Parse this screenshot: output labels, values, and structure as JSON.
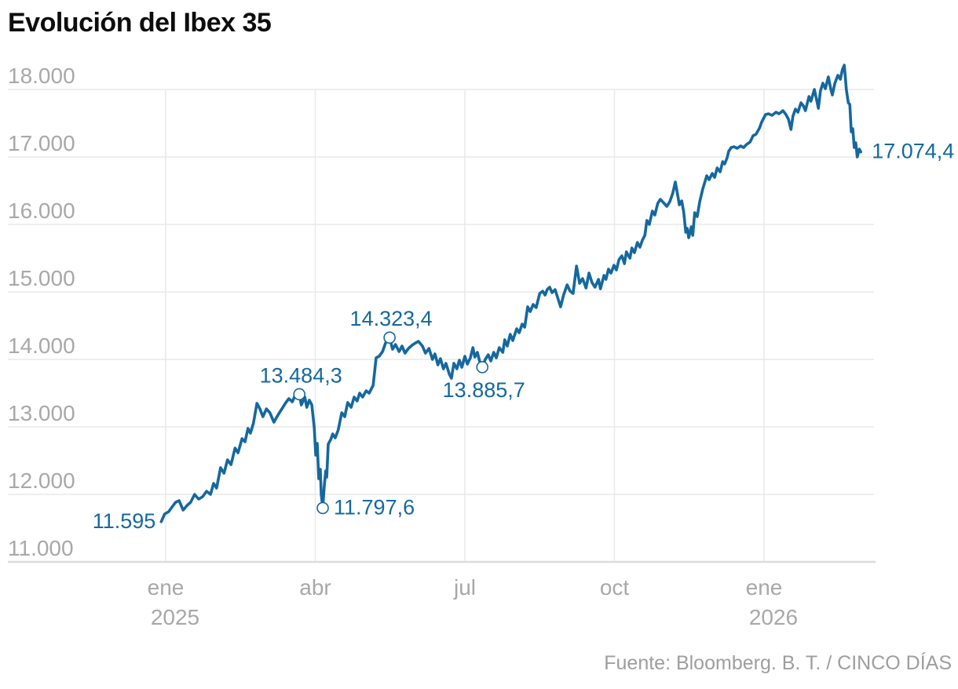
{
  "chart_data": {
    "type": "line",
    "title": "Evolución del Ibex 35",
    "source": "Fuente: Bloomberg. B. T. / CINCO DÍAS",
    "line_color": "#15689e",
    "annotation_color": "#15689e",
    "grid_color": "#e9e9e9",
    "axis_label_color": "#a8a8a8",
    "ylim": [
      11000,
      18000
    ],
    "y_axis": {
      "ticks": [
        {
          "value": 18000,
          "label": "18.000"
        },
        {
          "value": 17000,
          "label": "17.000"
        },
        {
          "value": 16000,
          "label": "16.000"
        },
        {
          "value": 15000,
          "label": "15.000"
        },
        {
          "value": 14000,
          "label": "14.000"
        },
        {
          "value": 13000,
          "label": "13.000"
        },
        {
          "value": 12000,
          "label": "12.000"
        },
        {
          "value": 11000,
          "label": "11.000"
        }
      ]
    },
    "x_axis": {
      "unit": "months_since_jan_2025",
      "ticks": [
        {
          "m": 0,
          "label": "ene",
          "year": "2025"
        },
        {
          "m": 3,
          "label": "abr"
        },
        {
          "m": 6,
          "label": "jul"
        },
        {
          "m": 9,
          "label": "oct"
        },
        {
          "m": 12,
          "label": "ene",
          "year": "2026"
        }
      ]
    },
    "annotations": [
      {
        "label": "11.595",
        "value": 11595,
        "m": -0.09,
        "marker": false,
        "pos": "left"
      },
      {
        "label": "13.484,3",
        "value": 13484.3,
        "m": 2.68,
        "marker": true,
        "pos": "above"
      },
      {
        "label": "11.797,6",
        "value": 11797.6,
        "m": 3.15,
        "marker": true,
        "pos": "right"
      },
      {
        "label": "14.323,4",
        "value": 14323.4,
        "m": 4.49,
        "marker": true,
        "pos": "above"
      },
      {
        "label": "13.885,7",
        "value": 13885.7,
        "m": 6.35,
        "marker": true,
        "pos": "below"
      },
      {
        "label": "17.074,4",
        "value": 17074.4,
        "m": 13.94,
        "marker": false,
        "pos": "right"
      }
    ],
    "series": [
      {
        "name": "Ibex 35",
        "points": [
          [
            -0.09,
            11595
          ],
          [
            -0.02,
            11709
          ],
          [
            0.06,
            11744
          ],
          [
            0.14,
            11826
          ],
          [
            0.2,
            11884
          ],
          [
            0.27,
            11907
          ],
          [
            0.35,
            11768
          ],
          [
            0.43,
            11837
          ],
          [
            0.5,
            11884
          ],
          [
            0.58,
            12000
          ],
          [
            0.66,
            11930
          ],
          [
            0.74,
            11965
          ],
          [
            0.82,
            12047
          ],
          [
            0.9,
            12000
          ],
          [
            0.96,
            12163
          ],
          [
            1.02,
            12093
          ],
          [
            1.1,
            12395
          ],
          [
            1.17,
            12314
          ],
          [
            1.24,
            12512
          ],
          [
            1.31,
            12442
          ],
          [
            1.39,
            12686
          ],
          [
            1.45,
            12616
          ],
          [
            1.53,
            12826
          ],
          [
            1.59,
            12779
          ],
          [
            1.65,
            12977
          ],
          [
            1.7,
            12907
          ],
          [
            1.76,
            13058
          ],
          [
            1.83,
            13349
          ],
          [
            1.89,
            13267
          ],
          [
            1.95,
            13151
          ],
          [
            2.02,
            13267
          ],
          [
            2.09,
            13209
          ],
          [
            2.17,
            13070
          ],
          [
            2.25,
            13174
          ],
          [
            2.33,
            13267
          ],
          [
            2.41,
            13360
          ],
          [
            2.47,
            13419
          ],
          [
            2.54,
            13372
          ],
          [
            2.6,
            13477
          ],
          [
            2.68,
            13484
          ],
          [
            2.72,
            13326
          ],
          [
            2.79,
            13442
          ],
          [
            2.83,
            13291
          ],
          [
            2.88,
            13395
          ],
          [
            2.93,
            13326
          ],
          [
            2.98,
            12988
          ],
          [
            3.01,
            12581
          ],
          [
            3.04,
            12756
          ],
          [
            3.07,
            12233
          ],
          [
            3.1,
            12372
          ],
          [
            3.12,
            12000
          ],
          [
            3.15,
            11798
          ],
          [
            3.18,
            12116
          ],
          [
            3.21,
            12349
          ],
          [
            3.23,
            12256
          ],
          [
            3.26,
            12744
          ],
          [
            3.31,
            12814
          ],
          [
            3.35,
            12895
          ],
          [
            3.4,
            12837
          ],
          [
            3.46,
            12953
          ],
          [
            3.53,
            13209
          ],
          [
            3.59,
            13151
          ],
          [
            3.65,
            13360
          ],
          [
            3.72,
            13291
          ],
          [
            3.78,
            13442
          ],
          [
            3.84,
            13384
          ],
          [
            3.89,
            13500
          ],
          [
            3.95,
            13442
          ],
          [
            4.02,
            13535
          ],
          [
            4.08,
            13500
          ],
          [
            4.16,
            13616
          ],
          [
            4.22,
            14023
          ],
          [
            4.28,
            14047
          ],
          [
            4.35,
            14116
          ],
          [
            4.41,
            14244
          ],
          [
            4.49,
            14323
          ],
          [
            4.55,
            14151
          ],
          [
            4.61,
            14221
          ],
          [
            4.68,
            14116
          ],
          [
            4.74,
            14198
          ],
          [
            4.8,
            14093
          ],
          [
            4.87,
            14163
          ],
          [
            4.94,
            14209
          ],
          [
            5.01,
            14244
          ],
          [
            5.07,
            14267
          ],
          [
            5.15,
            14198
          ],
          [
            5.21,
            14093
          ],
          [
            5.28,
            14163
          ],
          [
            5.35,
            14000
          ],
          [
            5.4,
            14081
          ],
          [
            5.46,
            13919
          ],
          [
            5.51,
            14012
          ],
          [
            5.57,
            13860
          ],
          [
            5.62,
            13942
          ],
          [
            5.69,
            13779
          ],
          [
            5.73,
            13721
          ],
          [
            5.78,
            13942
          ],
          [
            5.84,
            13860
          ],
          [
            5.89,
            13988
          ],
          [
            5.94,
            13884
          ],
          [
            6.0,
            14047
          ],
          [
            6.05,
            13930
          ],
          [
            6.11,
            14023
          ],
          [
            6.16,
            14174
          ],
          [
            6.2,
            14035
          ],
          [
            6.25,
            14105
          ],
          [
            6.3,
            13965
          ],
          [
            6.35,
            13886
          ],
          [
            6.41,
            14000
          ],
          [
            6.47,
            14070
          ],
          [
            6.52,
            13977
          ],
          [
            6.58,
            14105
          ],
          [
            6.63,
            14023
          ],
          [
            6.69,
            14174
          ],
          [
            6.76,
            14105
          ],
          [
            6.8,
            14291
          ],
          [
            6.85,
            14198
          ],
          [
            6.91,
            14372
          ],
          [
            6.96,
            14279
          ],
          [
            7.04,
            14453
          ],
          [
            7.09,
            14395
          ],
          [
            7.15,
            14523
          ],
          [
            7.2,
            14477
          ],
          [
            7.26,
            14779
          ],
          [
            7.31,
            14709
          ],
          [
            7.37,
            14814
          ],
          [
            7.43,
            14767
          ],
          [
            7.5,
            14977
          ],
          [
            7.56,
            15012
          ],
          [
            7.61,
            14953
          ],
          [
            7.65,
            15035
          ],
          [
            7.7,
            15070
          ],
          [
            7.75,
            14988
          ],
          [
            7.81,
            15035
          ],
          [
            7.86,
            14919
          ],
          [
            7.92,
            14779
          ],
          [
            7.98,
            14953
          ],
          [
            8.05,
            15105
          ],
          [
            8.11,
            15012
          ],
          [
            8.17,
            14977
          ],
          [
            8.24,
            15384
          ],
          [
            8.3,
            15128
          ],
          [
            8.36,
            15198
          ],
          [
            8.43,
            15058
          ],
          [
            8.49,
            15279
          ],
          [
            8.55,
            15140
          ],
          [
            8.61,
            15070
          ],
          [
            8.68,
            15186
          ],
          [
            8.72,
            15047
          ],
          [
            8.79,
            15244
          ],
          [
            8.83,
            15186
          ],
          [
            8.88,
            15337
          ],
          [
            8.93,
            15279
          ],
          [
            8.99,
            15395
          ],
          [
            9.04,
            15326
          ],
          [
            9.09,
            15477
          ],
          [
            9.15,
            15535
          ],
          [
            9.2,
            15419
          ],
          [
            9.24,
            15593
          ],
          [
            9.31,
            15500
          ],
          [
            9.35,
            15651
          ],
          [
            9.4,
            15581
          ],
          [
            9.46,
            15733
          ],
          [
            9.51,
            15663
          ],
          [
            9.56,
            15767
          ],
          [
            9.61,
            15837
          ],
          [
            9.65,
            16058
          ],
          [
            9.7,
            16000
          ],
          [
            9.76,
            16198
          ],
          [
            9.81,
            16140
          ],
          [
            9.87,
            16314
          ],
          [
            9.92,
            16372
          ],
          [
            9.98,
            16326
          ],
          [
            10.05,
            16267
          ],
          [
            10.11,
            16337
          ],
          [
            10.17,
            16465
          ],
          [
            10.22,
            16628
          ],
          [
            10.27,
            16430
          ],
          [
            10.3,
            16291
          ],
          [
            10.35,
            16349
          ],
          [
            10.39,
            16174
          ],
          [
            10.43,
            15884
          ],
          [
            10.46,
            15942
          ],
          [
            10.49,
            15802
          ],
          [
            10.54,
            15965
          ],
          [
            10.57,
            15837
          ],
          [
            10.61,
            16174
          ],
          [
            10.66,
            16116
          ],
          [
            10.71,
            16337
          ],
          [
            10.77,
            16523
          ],
          [
            10.85,
            16721
          ],
          [
            10.9,
            16663
          ],
          [
            10.96,
            16756
          ],
          [
            11.01,
            16698
          ],
          [
            11.06,
            16837
          ],
          [
            11.12,
            16779
          ],
          [
            11.17,
            16930
          ],
          [
            11.21,
            16895
          ],
          [
            11.26,
            16988
          ],
          [
            11.29,
            17081
          ],
          [
            11.34,
            17140
          ],
          [
            11.4,
            17151
          ],
          [
            11.46,
            17128
          ],
          [
            11.53,
            17163
          ],
          [
            11.59,
            17140
          ],
          [
            11.65,
            17186
          ],
          [
            11.72,
            17221
          ],
          [
            11.78,
            17314
          ],
          [
            11.84,
            17337
          ],
          [
            11.91,
            17430
          ],
          [
            11.95,
            17512
          ],
          [
            12.03,
            17628
          ],
          [
            12.09,
            17640
          ],
          [
            12.16,
            17616
          ],
          [
            12.24,
            17663
          ],
          [
            12.3,
            17640
          ],
          [
            12.38,
            17686
          ],
          [
            12.44,
            17628
          ],
          [
            12.49,
            17558
          ],
          [
            12.54,
            17407
          ],
          [
            12.58,
            17605
          ],
          [
            12.63,
            17709
          ],
          [
            12.68,
            17663
          ],
          [
            12.74,
            17802
          ],
          [
            12.79,
            17756
          ],
          [
            12.83,
            17686
          ],
          [
            12.9,
            17895
          ],
          [
            12.94,
            17826
          ],
          [
            13.01,
            18000
          ],
          [
            13.06,
            17826
          ],
          [
            13.09,
            17721
          ],
          [
            13.13,
            17977
          ],
          [
            13.18,
            18093
          ],
          [
            13.23,
            18012
          ],
          [
            13.29,
            18186
          ],
          [
            13.34,
            18000
          ],
          [
            13.37,
            17919
          ],
          [
            13.42,
            18093
          ],
          [
            13.48,
            18209
          ],
          [
            13.53,
            18151
          ],
          [
            13.57,
            18291
          ],
          [
            13.61,
            18360
          ],
          [
            13.65,
            18000
          ],
          [
            13.69,
            17802
          ],
          [
            13.72,
            17779
          ],
          [
            13.75,
            17372
          ],
          [
            13.78,
            17419
          ],
          [
            13.81,
            17140
          ],
          [
            13.84,
            17209
          ],
          [
            13.87,
            17000
          ],
          [
            13.91,
            17116
          ],
          [
            13.94,
            17074
          ]
        ]
      }
    ]
  }
}
